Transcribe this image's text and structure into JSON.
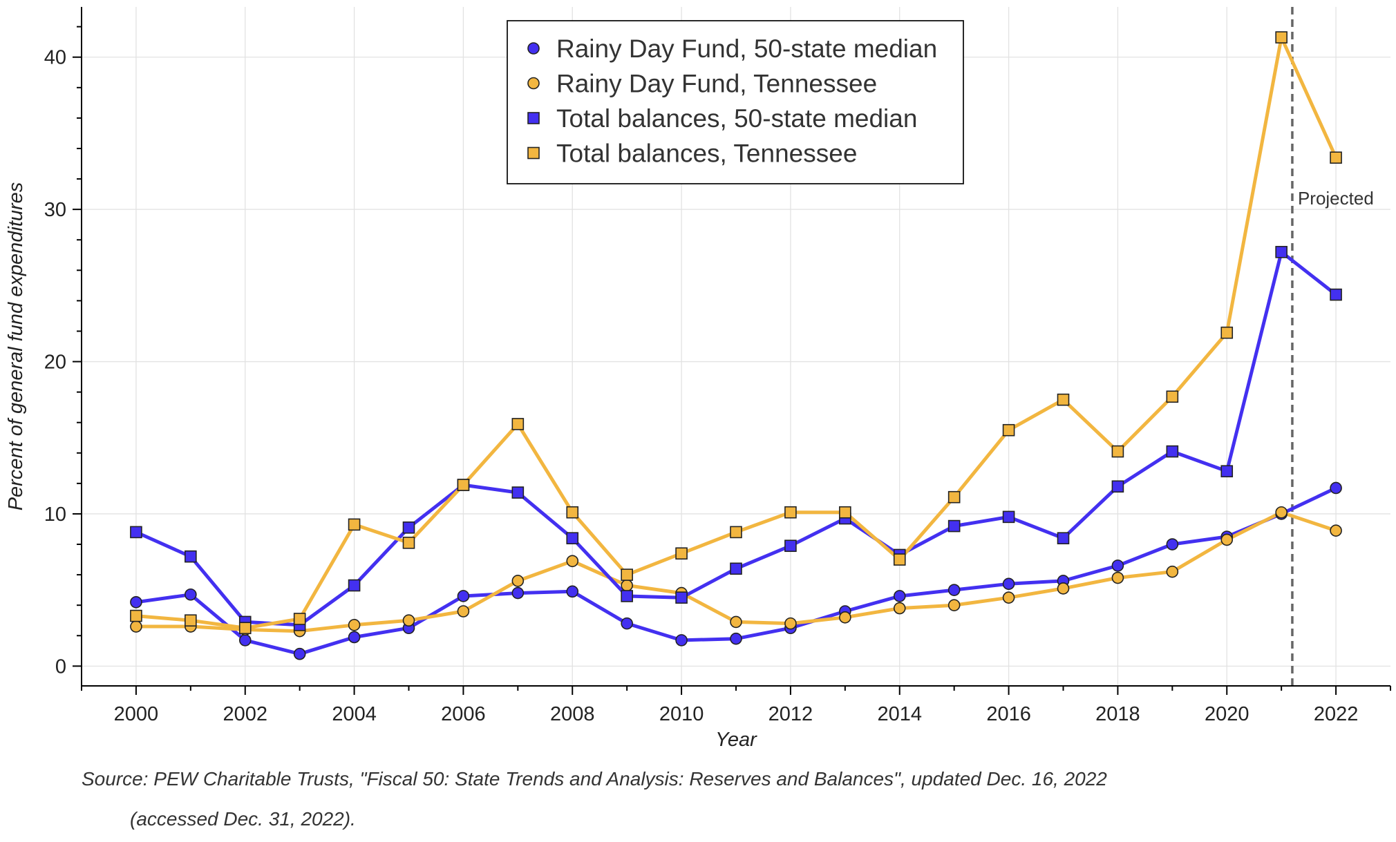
{
  "chart_data": {
    "type": "line",
    "xlabel": "Year",
    "ylabel": "Percent of general fund expenditures",
    "xlim": [
      1999,
      2023
    ],
    "ylim": [
      -1.3,
      43.3
    ],
    "x_ticks": [
      2000,
      2002,
      2004,
      2006,
      2008,
      2010,
      2012,
      2014,
      2016,
      2018,
      2020,
      2022
    ],
    "y_ticks": [
      0,
      10,
      20,
      30,
      40
    ],
    "grid": true,
    "legend_position": "top-center",
    "x": [
      2000,
      2001,
      2002,
      2003,
      2004,
      2005,
      2006,
      2007,
      2008,
      2009,
      2010,
      2011,
      2012,
      2013,
      2014,
      2015,
      2016,
      2017,
      2018,
      2019,
      2020,
      2021,
      2022
    ],
    "series": [
      {
        "name": "Rainy Day Fund, 50-state median",
        "color": "#4330f0",
        "marker": "circle",
        "values": [
          4.2,
          4.7,
          1.7,
          0.8,
          1.9,
          2.5,
          4.6,
          4.8,
          4.9,
          2.8,
          1.7,
          1.8,
          2.5,
          3.6,
          4.6,
          5.0,
          5.4,
          5.6,
          6.6,
          8.0,
          8.5,
          10.0,
          11.7
        ]
      },
      {
        "name": "Rainy Day Fund, Tennessee",
        "color": "#f2b640",
        "marker": "circle",
        "values": [
          2.6,
          2.6,
          2.4,
          2.3,
          2.7,
          3.0,
          3.6,
          5.6,
          6.9,
          5.3,
          4.8,
          2.9,
          2.8,
          3.2,
          3.8,
          4.0,
          4.5,
          5.1,
          5.8,
          6.2,
          8.3,
          10.1,
          8.9
        ]
      },
      {
        "name": "Total balances, 50-state median",
        "color": "#4330f0",
        "marker": "square",
        "values": [
          8.8,
          7.2,
          2.9,
          2.7,
          5.3,
          9.1,
          11.9,
          11.4,
          8.4,
          4.6,
          4.5,
          6.4,
          7.9,
          9.7,
          7.3,
          9.2,
          9.8,
          8.4,
          11.8,
          14.1,
          12.8,
          27.2,
          24.4
        ]
      },
      {
        "name": "Total balances, Tennessee",
        "color": "#f2b640",
        "marker": "square",
        "values": [
          3.3,
          3.0,
          2.5,
          3.1,
          9.3,
          8.1,
          11.9,
          15.9,
          10.1,
          6.0,
          7.4,
          8.8,
          10.1,
          10.1,
          7.0,
          11.1,
          15.5,
          17.5,
          14.1,
          17.7,
          21.9,
          41.3,
          33.4
        ]
      }
    ],
    "annotation": {
      "text": "Projected",
      "x": 2021.2
    }
  },
  "source_note": {
    "line1": "Source: PEW Charitable Trusts, \"Fiscal 50: State Trends and Analysis: Reserves and Balances\", updated Dec. 16, 2022",
    "line2": "(accessed Dec. 31, 2022)."
  }
}
